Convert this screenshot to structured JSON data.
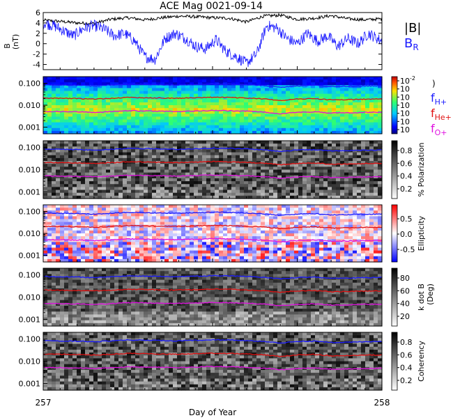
{
  "title": "ACE Mag 0021-09-14",
  "x_axis": {
    "label": "Day of Year",
    "start_label": "257",
    "end_label": "258"
  },
  "chart_data": [
    {
      "type": "line",
      "panel": "magnetic field",
      "ylabel": "B",
      "yunit": "(nT)",
      "ylim": [
        -5,
        6
      ],
      "yticks": [
        "6",
        "4",
        "2",
        "0",
        "-2",
        "-4"
      ],
      "legend": [
        "|B|",
        "B",
        "R"
      ],
      "series": [
        {
          "name": "|B|",
          "color": "#000000",
          "x": [
            257.0,
            257.05,
            257.1,
            257.15,
            257.2,
            257.25,
            257.3,
            257.35,
            257.4,
            257.45,
            257.5,
            257.55,
            257.6,
            257.65,
            257.7,
            257.75,
            257.8,
            257.85,
            257.9,
            257.95,
            258.0
          ],
          "values": [
            4.5,
            4.3,
            4.0,
            3.9,
            4.7,
            5.0,
            4.6,
            5.0,
            5.3,
            5.2,
            5.0,
            4.9,
            4.2,
            5.3,
            5.5,
            4.7,
            4.9,
            5.4,
            4.8,
            4.6,
            4.8
          ]
        },
        {
          "name": "B_R",
          "color": "#1a1aff",
          "x": [
            257.0,
            257.03,
            257.06,
            257.09,
            257.12,
            257.15,
            257.18,
            257.21,
            257.24,
            257.27,
            257.3,
            257.33,
            257.36,
            257.39,
            257.42,
            257.45,
            257.48,
            257.51,
            257.54,
            257.57,
            257.6,
            257.63,
            257.66,
            257.69,
            257.72,
            257.75,
            257.78,
            257.81,
            257.84,
            257.87,
            257.9,
            257.93,
            257.96,
            258.0
          ],
          "values": [
            4.0,
            3.5,
            2.5,
            1.5,
            3.0,
            3.5,
            2.8,
            1.5,
            2.0,
            0.5,
            -2.5,
            -3.0,
            1.0,
            2.0,
            1.0,
            -0.5,
            -1.0,
            0.8,
            -1.5,
            -2.5,
            -3.8,
            -2.0,
            3.5,
            3.0,
            1.0,
            0.0,
            2.0,
            0.5,
            1.5,
            -0.5,
            1.0,
            0.0,
            2.0,
            0.5
          ]
        }
      ]
    },
    {
      "type": "heatmap",
      "panel": "power",
      "yticks": [
        "0.100",
        "0.010",
        "0.001"
      ],
      "colorbar": {
        "ticks": [
          "10",
          "10",
          "10",
          "10",
          "10",
          "10",
          "10"
        ],
        "exponents": [
          "-2",
          "",
          "",
          "",
          "",
          "",
          ""
        ],
        "label": ")"
      },
      "legend": [
        {
          "label": "f",
          "sub": "H+",
          "color": "#1a1aff"
        },
        {
          "label": "f",
          "sub": "He+",
          "color": "#e01010"
        },
        {
          "label": "f",
          "sub": "O+",
          "color": "#e010e0"
        }
      ]
    },
    {
      "type": "heatmap",
      "panel": "polarization",
      "yticks": [
        "0.100",
        "0.010",
        "0.001"
      ],
      "colorbar": {
        "ticks": [
          "0.8",
          "0.6",
          "0.4",
          "0.2"
        ],
        "label": "% Polarization"
      }
    },
    {
      "type": "heatmap",
      "panel": "ellipticity",
      "yticks": [
        "0.100",
        "0.010",
        "0.001"
      ],
      "colorbar": {
        "ticks": [
          "0.5",
          "0.0",
          "-0.5"
        ],
        "label": "Ellipticity"
      }
    },
    {
      "type": "heatmap",
      "panel": "k dot B",
      "yticks": [
        "0.100",
        "0.010",
        "0.001"
      ],
      "colorbar": {
        "ticks": [
          "80",
          "60",
          "40",
          "20"
        ],
        "label": "k dot B",
        "unit": "(Deg)"
      }
    },
    {
      "type": "heatmap",
      "panel": "coherency",
      "yticks": [
        "0.100",
        "0.010",
        "0.001"
      ],
      "colorbar": {
        "ticks": [
          "0.8",
          "0.6",
          "0.4",
          "0.2"
        ],
        "label": "Coherency"
      }
    }
  ],
  "gyro_lines": {
    "H": {
      "color": "#1a1aff",
      "values": [
        0.085,
        0.082,
        0.08,
        0.075,
        0.082,
        0.09,
        0.088,
        0.085,
        0.083,
        0.087,
        0.092,
        0.09,
        0.085,
        0.078,
        0.066,
        0.076,
        0.08,
        0.07,
        0.072,
        0.075,
        0.076
      ]
    },
    "He": {
      "color": "#e01010",
      "values": [
        0.021,
        0.0205,
        0.02,
        0.019,
        0.0205,
        0.0225,
        0.022,
        0.021,
        0.0208,
        0.0218,
        0.023,
        0.0225,
        0.021,
        0.0195,
        0.0165,
        0.019,
        0.02,
        0.0175,
        0.018,
        0.0188,
        0.019
      ]
    },
    "O": {
      "color": "#e010e0",
      "values": [
        0.0052,
        0.0051,
        0.005,
        0.0047,
        0.0051,
        0.0056,
        0.0055,
        0.0053,
        0.0052,
        0.0054,
        0.0058,
        0.0056,
        0.0053,
        0.0049,
        0.0041,
        0.0047,
        0.005,
        0.0044,
        0.0045,
        0.0047,
        0.0048
      ]
    }
  }
}
